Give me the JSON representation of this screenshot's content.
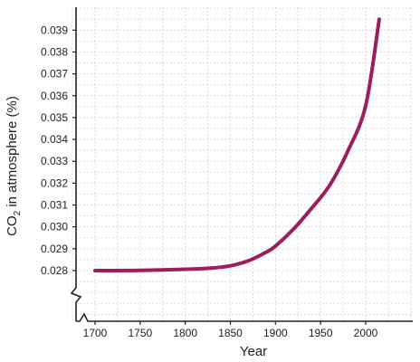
{
  "chart_data": {
    "type": "line",
    "title": "",
    "xlabel": "Year",
    "ylabel": {
      "prefix": "CO",
      "subscript": "2",
      "suffix": " in atmosphere (%)"
    },
    "xlim": [
      1680,
      2060
    ],
    "ylim": [
      0.028,
      0.0398
    ],
    "x_axis_break": true,
    "y_axis_break": true,
    "grid": true,
    "xticks": [
      "1700",
      "1750",
      "1800",
      "1850",
      "1900",
      "1950",
      "2000"
    ],
    "yticks": [
      "0.028",
      "0.029",
      "0.030",
      "0.031",
      "0.032",
      "0.033",
      "0.034",
      "0.035",
      "0.036",
      "0.037",
      "0.038",
      "0.039"
    ],
    "line_color": "#9c1f5c",
    "series": [
      {
        "x": [
          1700,
          1750,
          1800,
          1830,
          1850,
          1870,
          1890,
          1900,
          1920,
          1940,
          1960,
          1980,
          2000,
          2015
        ],
        "values": [
          0.028,
          0.02801,
          0.02806,
          0.02812,
          0.02822,
          0.02845,
          0.02885,
          0.02912,
          0.0299,
          0.03085,
          0.0319,
          0.03345,
          0.03555,
          0.0395
        ]
      }
    ]
  }
}
